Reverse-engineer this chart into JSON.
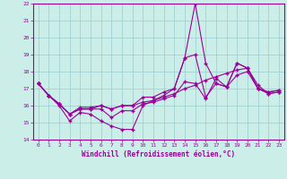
{
  "xlabel": "Windchill (Refroidissement éolien,°C)",
  "xlim": [
    -0.5,
    23.5
  ],
  "ylim": [
    14,
    22
  ],
  "xticks": [
    0,
    1,
    2,
    3,
    4,
    5,
    6,
    7,
    8,
    9,
    10,
    11,
    12,
    13,
    14,
    15,
    16,
    17,
    18,
    19,
    20,
    21,
    22,
    23
  ],
  "yticks": [
    14,
    15,
    16,
    17,
    18,
    19,
    20,
    21,
    22
  ],
  "bg_color": "#cceee8",
  "line_color": "#990099",
  "grid_color": "#99cccc",
  "series1": [
    17.3,
    16.6,
    16.0,
    15.1,
    15.6,
    15.5,
    15.1,
    14.8,
    14.6,
    14.6,
    16.0,
    16.3,
    16.6,
    17.0,
    18.8,
    19.0,
    16.5,
    17.3,
    17.1,
    18.5,
    18.2,
    17.0,
    16.7,
    16.8
  ],
  "series2": [
    17.3,
    16.6,
    16.1,
    15.5,
    15.8,
    15.8,
    15.8,
    15.3,
    15.7,
    15.7,
    16.1,
    16.2,
    16.4,
    16.6,
    17.4,
    17.3,
    16.4,
    17.6,
    17.1,
    17.8,
    18.0,
    17.0,
    16.8,
    16.9
  ],
  "series3": [
    17.3,
    16.6,
    16.1,
    15.5,
    15.8,
    15.8,
    16.0,
    15.8,
    16.0,
    16.0,
    16.5,
    16.5,
    16.8,
    17.0,
    18.8,
    22.0,
    18.5,
    17.3,
    17.1,
    18.5,
    18.2,
    17.2,
    16.7,
    16.8
  ],
  "series4": [
    17.3,
    16.6,
    16.1,
    15.5,
    15.9,
    15.9,
    16.0,
    15.8,
    16.0,
    16.0,
    16.2,
    16.3,
    16.5,
    16.7,
    17.0,
    17.2,
    17.5,
    17.7,
    17.9,
    18.1,
    18.2,
    17.0,
    16.8,
    16.9
  ]
}
